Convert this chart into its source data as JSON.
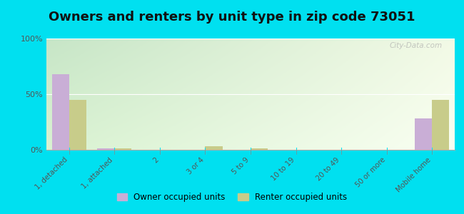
{
  "title": "Owners and renters by unit type in zip code 73051",
  "categories": [
    "1, detached",
    "1, attached",
    "2",
    "3 or 4",
    "5 to 9",
    "10 to 19",
    "20 to 49",
    "50 or more",
    "Mobile home"
  ],
  "owner_values": [
    68,
    1,
    0,
    0,
    0,
    0,
    0,
    0,
    28
  ],
  "renter_values": [
    45,
    1,
    0,
    3,
    1,
    0,
    0,
    0,
    45
  ],
  "owner_color": "#c9aed6",
  "renter_color": "#c8cc8a",
  "bg_color": "#00e0f0",
  "ylabel_ticks": [
    "0%",
    "50%",
    "100%"
  ],
  "yticks": [
    0,
    50,
    100
  ],
  "ylim": [
    0,
    100
  ],
  "title_fontsize": 13,
  "legend_owner": "Owner occupied units",
  "legend_renter": "Renter occupied units",
  "watermark": "City-Data.com",
  "grad_colors": [
    "#c8e6c9",
    "#f1f8e9",
    "#f9fde8",
    "#ffffff"
  ],
  "grid_color": "#e0e0d0",
  "tick_color": "#888888"
}
